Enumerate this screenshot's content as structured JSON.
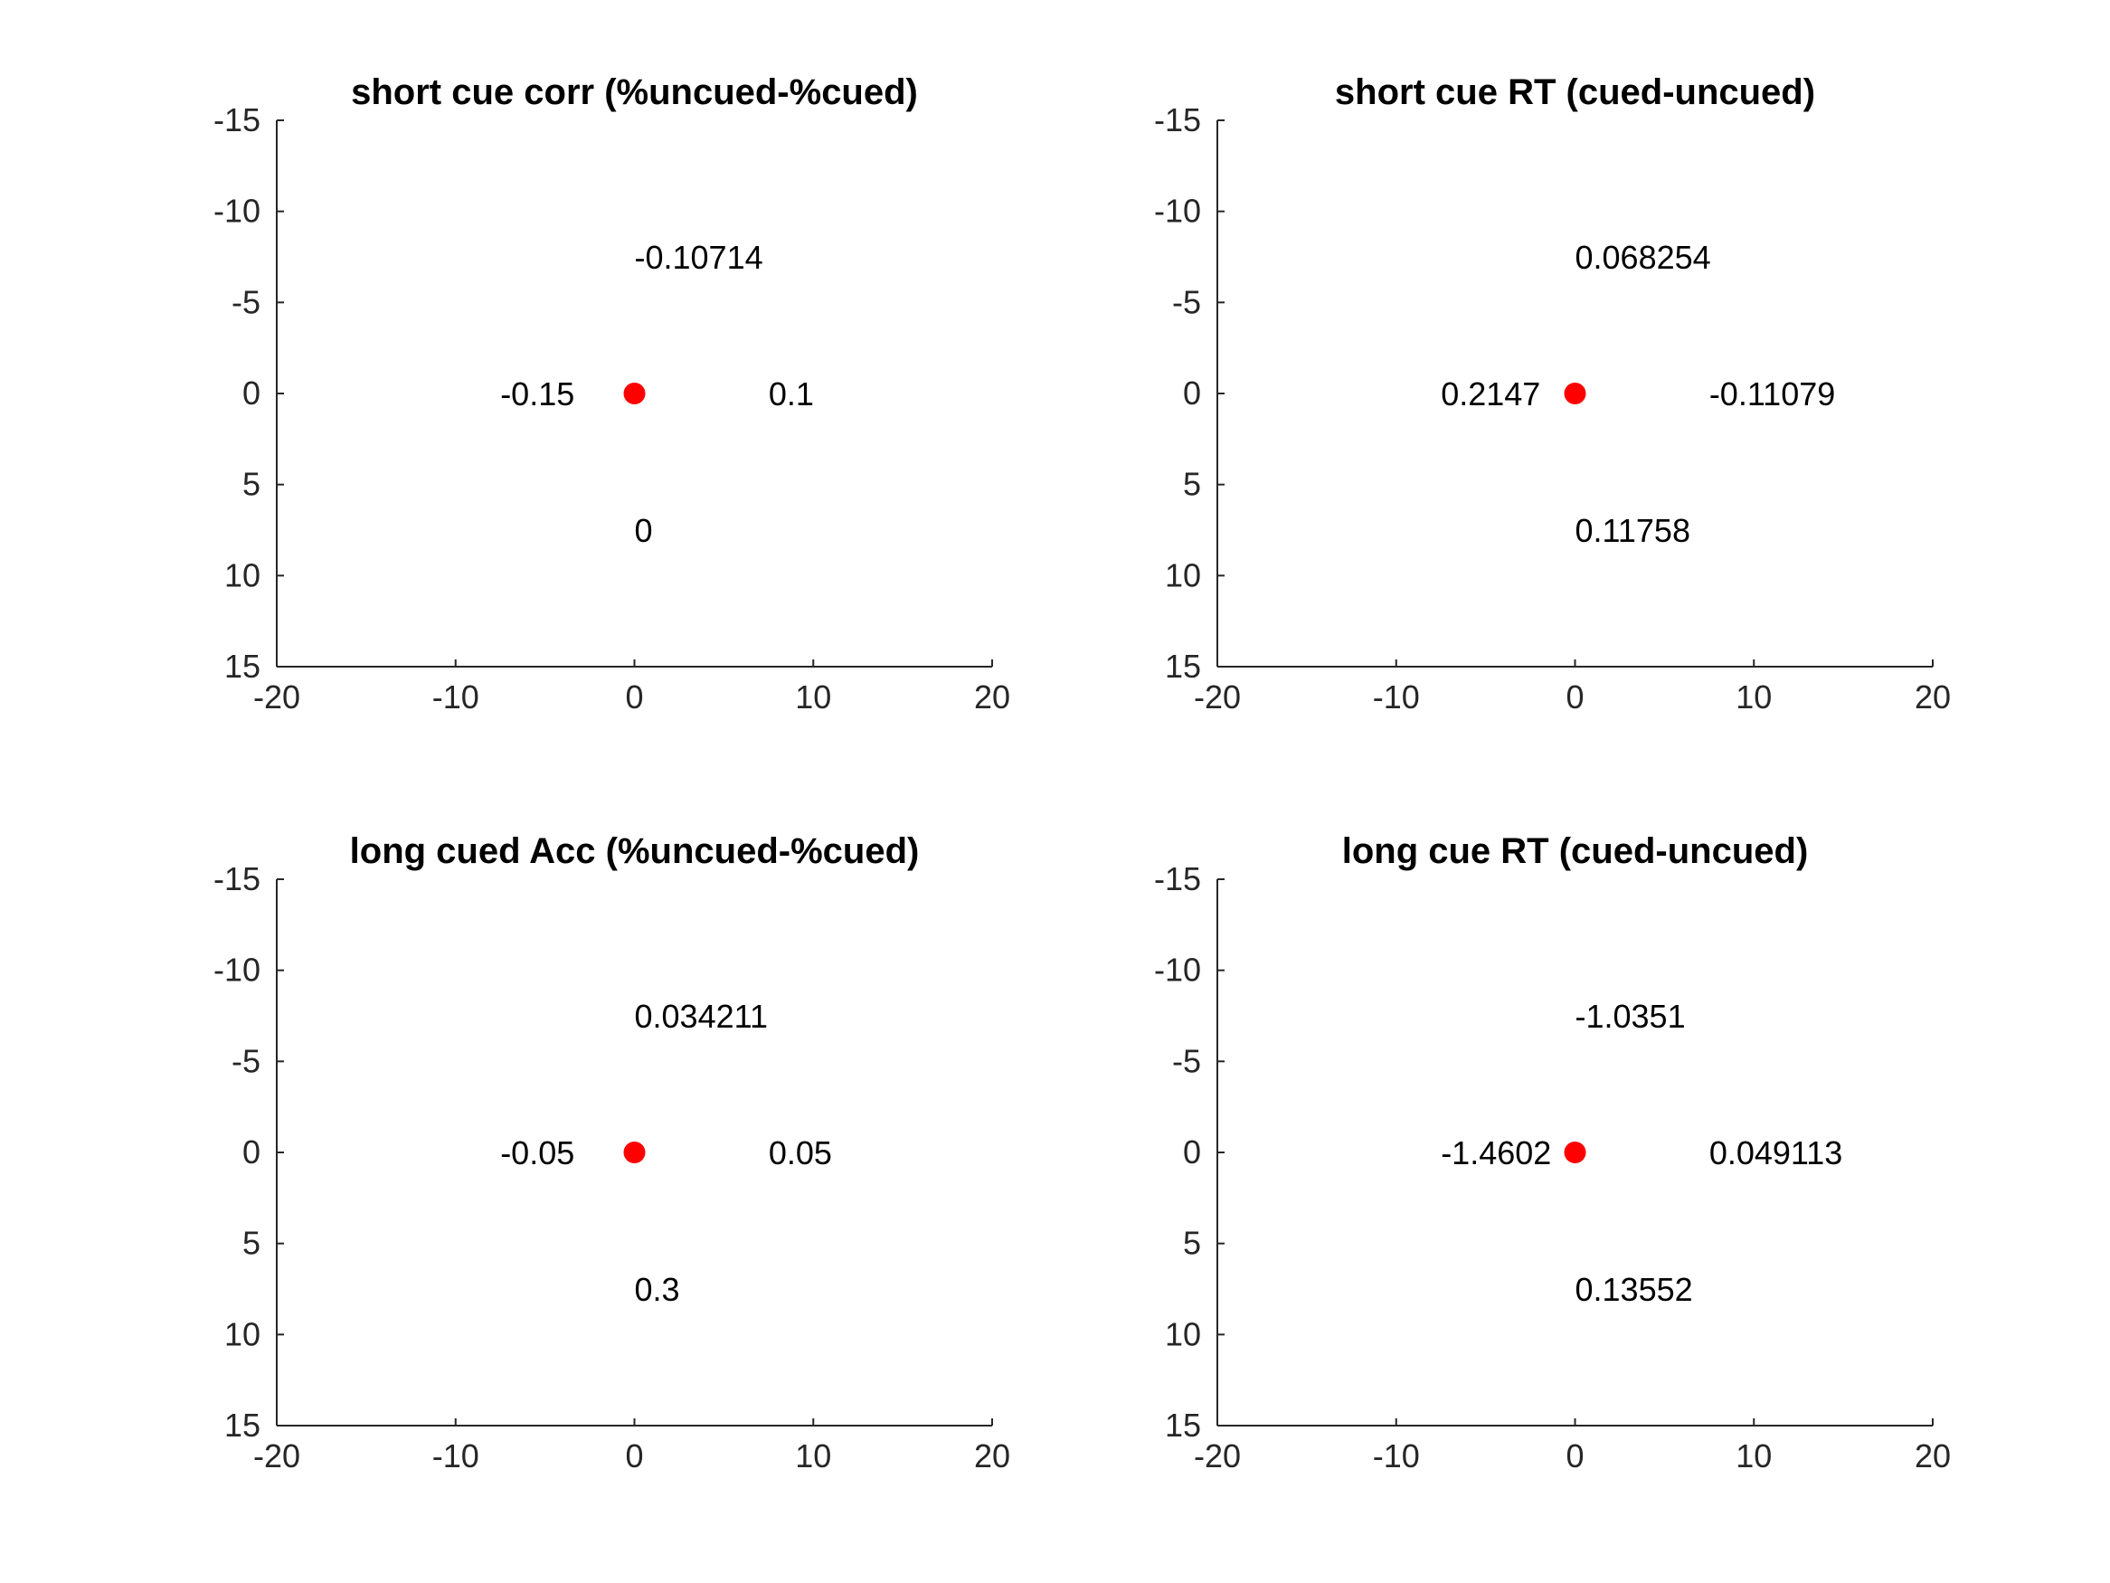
{
  "chart_data": [
    {
      "type": "scatter",
      "title": "short cue corr (%uncued-%cued)",
      "xlim": [
        -20,
        20
      ],
      "ylim": [
        -15,
        15
      ],
      "y_reversed": true,
      "xticks": [
        -20,
        -10,
        0,
        10,
        20
      ],
      "yticks": [
        -15,
        -10,
        -5,
        0,
        5,
        10,
        15
      ],
      "grid": false,
      "marker_color": "#ff0000",
      "points": [
        {
          "x": 0,
          "y": 0
        }
      ],
      "annotations": [
        {
          "text": "-0.10714",
          "x": 0,
          "y": -7.5
        },
        {
          "text": "-0.15",
          "x": -7.5,
          "y": 0
        },
        {
          "text": "0.1",
          "x": 7.5,
          "y": 0
        },
        {
          "text": "0",
          "x": 0,
          "y": 7.5
        }
      ]
    },
    {
      "type": "scatter",
      "title": "short cue RT (cued-uncued)",
      "xlim": [
        -20,
        20
      ],
      "ylim": [
        -15,
        15
      ],
      "y_reversed": true,
      "xticks": [
        -20,
        -10,
        0,
        10,
        20
      ],
      "yticks": [
        -15,
        -10,
        -5,
        0,
        5,
        10,
        15
      ],
      "grid": false,
      "marker_color": "#ff0000",
      "points": [
        {
          "x": 0,
          "y": 0
        }
      ],
      "annotations": [
        {
          "text": "0.068254",
          "x": 0,
          "y": -7.5
        },
        {
          "text": "0.2147",
          "x": -7.5,
          "y": 0
        },
        {
          "text": "-0.11079",
          "x": 7.5,
          "y": 0
        },
        {
          "text": "0.11758",
          "x": 0,
          "y": 7.5
        }
      ]
    },
    {
      "type": "scatter",
      "title": "long cued Acc (%uncued-%cued)",
      "xlim": [
        -20,
        20
      ],
      "ylim": [
        -15,
        15
      ],
      "y_reversed": true,
      "xticks": [
        -20,
        -10,
        0,
        10,
        20
      ],
      "yticks": [
        -15,
        -10,
        -5,
        0,
        5,
        10,
        15
      ],
      "grid": false,
      "marker_color": "#ff0000",
      "points": [
        {
          "x": 0,
          "y": 0
        }
      ],
      "annotations": [
        {
          "text": "0.034211",
          "x": 0,
          "y": -7.5
        },
        {
          "text": "-0.05",
          "x": -7.5,
          "y": 0
        },
        {
          "text": "0.05",
          "x": 7.5,
          "y": 0
        },
        {
          "text": "0.3",
          "x": 0,
          "y": 7.5
        }
      ]
    },
    {
      "type": "scatter",
      "title": "long cue RT (cued-uncued)",
      "xlim": [
        -20,
        20
      ],
      "ylim": [
        -15,
        15
      ],
      "y_reversed": true,
      "xticks": [
        -20,
        -10,
        0,
        10,
        20
      ],
      "yticks": [
        -15,
        -10,
        -5,
        0,
        5,
        10,
        15
      ],
      "grid": false,
      "marker_color": "#ff0000",
      "points": [
        {
          "x": 0,
          "y": 0
        }
      ],
      "annotations": [
        {
          "text": "-1.0351",
          "x": 0,
          "y": -7.5
        },
        {
          "text": "-1.4602",
          "x": -7.5,
          "y": 0
        },
        {
          "text": "0.049113",
          "x": 7.5,
          "y": 0
        },
        {
          "text": "0.13552",
          "x": 0,
          "y": 7.5
        }
      ]
    }
  ]
}
